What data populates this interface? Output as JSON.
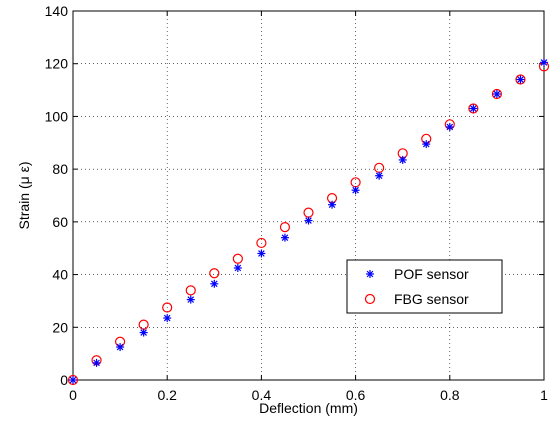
{
  "chart_data": {
    "type": "scatter",
    "xlabel": "Deflection (mm)",
    "ylabel": "Strain (μ ε)",
    "xlim": [
      0,
      1
    ],
    "ylim": [
      0,
      140
    ],
    "xticks": [
      0,
      0.2,
      0.4,
      0.6,
      0.8,
      1
    ],
    "yticks": [
      0,
      20,
      40,
      60,
      80,
      100,
      120,
      140
    ],
    "xtick_labels": [
      "0",
      "0.2",
      "0.4",
      "0.6",
      "0.8",
      "1"
    ],
    "ytick_labels": [
      "0",
      "20",
      "40",
      "60",
      "80",
      "100",
      "120",
      "140"
    ],
    "grid": true,
    "legend_position": "lower-right",
    "series": [
      {
        "name": "POF sensor",
        "marker": "asterisk",
        "color": "#0000ff",
        "x": [
          0,
          0.05,
          0.1,
          0.15,
          0.2,
          0.25,
          0.3,
          0.35,
          0.4,
          0.45,
          0.5,
          0.55,
          0.6,
          0.65,
          0.7,
          0.75,
          0.8,
          0.85,
          0.9,
          0.95,
          1
        ],
        "y": [
          0,
          6.5,
          12.5,
          18,
          23.5,
          30.5,
          36.5,
          42.5,
          48,
          54,
          60.5,
          66.5,
          72,
          77.5,
          83.5,
          89.5,
          96,
          103,
          108.5,
          114,
          120.5
        ]
      },
      {
        "name": "FBG sensor",
        "marker": "circle",
        "color": "#ff0000",
        "x": [
          0,
          0.05,
          0.1,
          0.15,
          0.2,
          0.25,
          0.3,
          0.35,
          0.4,
          0.45,
          0.5,
          0.55,
          0.6,
          0.65,
          0.7,
          0.75,
          0.8,
          0.85,
          0.9,
          0.95,
          1
        ],
        "y": [
          0,
          7.5,
          14.5,
          21,
          27.5,
          34,
          40.5,
          46,
          52,
          58,
          63.5,
          69,
          75,
          80.5,
          86,
          91.5,
          97,
          103,
          108.5,
          114,
          119
        ]
      }
    ]
  }
}
